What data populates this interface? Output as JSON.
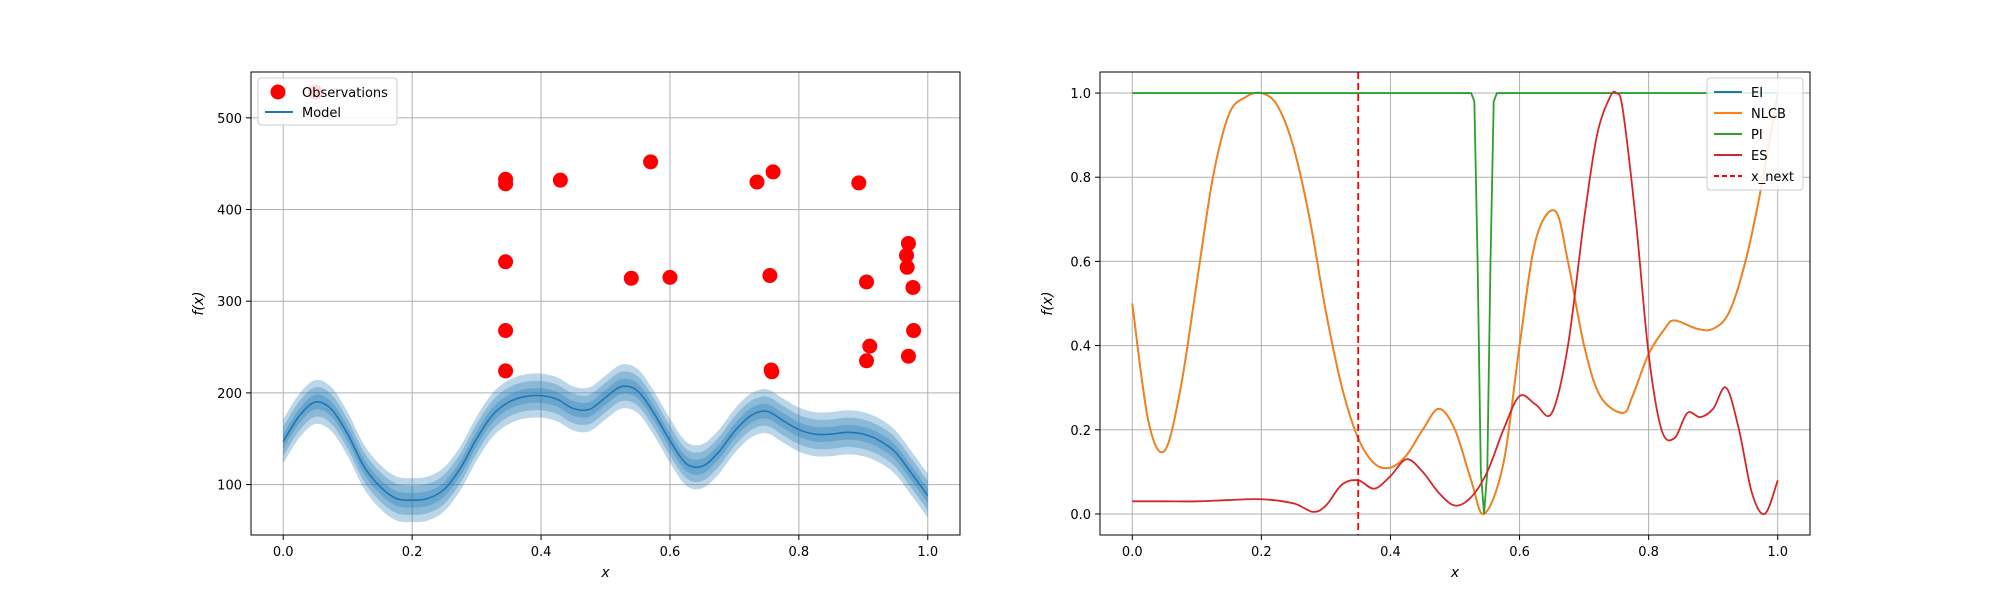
{
  "chart_data": [
    {
      "type": "scatter",
      "panel": "left",
      "xlabel": "x",
      "ylabel": "f(x)",
      "xlim": [
        -0.05,
        1.05
      ],
      "ylim": [
        45,
        550
      ],
      "xticks": [
        0.0,
        0.2,
        0.4,
        0.6,
        0.8,
        1.0
      ],
      "yticks": [
        100,
        200,
        300,
        400,
        500
      ],
      "xtick_labels": [
        "0.0",
        "0.2",
        "0.4",
        "0.6",
        "0.8",
        "1.0"
      ],
      "ytick_labels": [
        "100",
        "200",
        "300",
        "400",
        "500"
      ],
      "grid": true,
      "legend": {
        "placement": "top-left",
        "entries": [
          "Observations",
          "Model"
        ]
      },
      "colors": {
        "observations": "#ff0000",
        "model": "#1f77b4"
      },
      "series": [
        {
          "name": "Observations",
          "kind": "points",
          "points": [
            [
              0.05,
              528
            ],
            [
              0.345,
              433
            ],
            [
              0.345,
              428
            ],
            [
              0.345,
              343
            ],
            [
              0.345,
              268
            ],
            [
              0.345,
              224
            ],
            [
              0.43,
              432
            ],
            [
              0.54,
              325
            ],
            [
              0.57,
              452
            ],
            [
              0.6,
              326
            ],
            [
              0.735,
              430
            ],
            [
              0.755,
              328
            ],
            [
              0.76,
              441
            ],
            [
              0.757,
              225
            ],
            [
              0.758,
              223
            ],
            [
              0.893,
              429
            ],
            [
              0.905,
              321
            ],
            [
              0.905,
              235
            ],
            [
              0.91,
              251
            ],
            [
              0.97,
              363
            ],
            [
              0.967,
              350
            ],
            [
              0.968,
              337
            ],
            [
              0.977,
              315
            ],
            [
              0.978,
              268
            ],
            [
              0.97,
              240
            ]
          ]
        },
        {
          "name": "Model",
          "kind": "mean_with_bands",
          "x": [
            0.0,
            0.025,
            0.05,
            0.075,
            0.1,
            0.125,
            0.15,
            0.175,
            0.2,
            0.225,
            0.25,
            0.275,
            0.3,
            0.325,
            0.35,
            0.375,
            0.4,
            0.425,
            0.45,
            0.475,
            0.5,
            0.525,
            0.55,
            0.575,
            0.6,
            0.625,
            0.65,
            0.675,
            0.7,
            0.725,
            0.75,
            0.775,
            0.8,
            0.825,
            0.85,
            0.875,
            0.9,
            0.925,
            0.95,
            0.975,
            1.0
          ],
          "mean": [
            147,
            175,
            190,
            182,
            155,
            120,
            98,
            85,
            83,
            85,
            95,
            118,
            150,
            176,
            190,
            196,
            197,
            193,
            183,
            182,
            195,
            207,
            202,
            178,
            148,
            123,
            120,
            135,
            158,
            175,
            180,
            170,
            160,
            155,
            155,
            157,
            155,
            148,
            135,
            112,
            88
          ],
          "bands": [
            8,
            16,
            24
          ]
        }
      ]
    },
    {
      "type": "line",
      "panel": "right",
      "xlabel": "x",
      "ylabel": "f(x)",
      "xlim": [
        -0.05,
        1.05
      ],
      "ylim": [
        -0.05,
        1.05
      ],
      "xticks": [
        0.0,
        0.2,
        0.4,
        0.6,
        0.8,
        1.0
      ],
      "yticks": [
        0.0,
        0.2,
        0.4,
        0.6,
        0.8,
        1.0
      ],
      "xtick_labels": [
        "0.0",
        "0.2",
        "0.4",
        "0.6",
        "0.8",
        "1.0"
      ],
      "ytick_labels": [
        "0.0",
        "0.2",
        "0.4",
        "0.6",
        "0.8",
        "1.0"
      ],
      "grid": true,
      "legend": {
        "placement": "top-right",
        "entries": [
          "EI",
          "NLCB",
          "PI",
          "ES",
          "x_next"
        ]
      },
      "x_next": 0.35,
      "series": [
        {
          "name": "EI",
          "color": "#1f77b4",
          "x": [
            0.0,
            0.025,
            0.05,
            0.075,
            0.1,
            0.125,
            0.15,
            0.175,
            0.2,
            0.225,
            0.25,
            0.275,
            0.3,
            0.325,
            0.35,
            0.375,
            0.4,
            0.425,
            0.45,
            0.475,
            0.5,
            0.525,
            0.545,
            0.575,
            0.6,
            0.625,
            0.655,
            0.675,
            0.7,
            0.725,
            0.76,
            0.775,
            0.8,
            0.825,
            0.84,
            0.875,
            0.9,
            0.925,
            0.95,
            0.975,
            1.0
          ],
          "y": [
            0.5,
            0.22,
            0.15,
            0.3,
            0.55,
            0.8,
            0.95,
            0.99,
            1.0,
            0.97,
            0.87,
            0.7,
            0.48,
            0.3,
            0.18,
            0.12,
            0.11,
            0.14,
            0.2,
            0.25,
            0.2,
            0.08,
            0.0,
            0.12,
            0.4,
            0.65,
            0.72,
            0.6,
            0.4,
            0.28,
            0.24,
            0.28,
            0.38,
            0.44,
            0.46,
            0.44,
            0.44,
            0.48,
            0.6,
            0.78,
            1.0
          ]
        },
        {
          "name": "NLCB",
          "color": "#ff7f0e",
          "x": [
            0.0,
            0.025,
            0.05,
            0.075,
            0.1,
            0.125,
            0.15,
            0.175,
            0.2,
            0.225,
            0.25,
            0.275,
            0.3,
            0.325,
            0.35,
            0.375,
            0.4,
            0.425,
            0.45,
            0.475,
            0.5,
            0.525,
            0.545,
            0.575,
            0.6,
            0.625,
            0.655,
            0.675,
            0.7,
            0.725,
            0.76,
            0.775,
            0.8,
            0.825,
            0.84,
            0.875,
            0.9,
            0.925,
            0.95,
            0.975,
            1.0
          ],
          "y": [
            0.5,
            0.22,
            0.15,
            0.3,
            0.55,
            0.8,
            0.95,
            0.99,
            1.0,
            0.97,
            0.87,
            0.7,
            0.48,
            0.3,
            0.18,
            0.12,
            0.11,
            0.14,
            0.2,
            0.25,
            0.2,
            0.08,
            0.0,
            0.12,
            0.4,
            0.65,
            0.72,
            0.6,
            0.4,
            0.28,
            0.24,
            0.28,
            0.38,
            0.44,
            0.46,
            0.44,
            0.44,
            0.48,
            0.6,
            0.78,
            1.0
          ]
        },
        {
          "name": "PI",
          "color": "#2ca02c",
          "x": [
            0.0,
            0.525,
            0.53,
            0.535,
            0.54,
            0.545,
            0.55,
            0.555,
            0.56,
            0.565,
            1.0
          ],
          "y": [
            1.0,
            1.0,
            0.98,
            0.6,
            0.1,
            0.0,
            0.1,
            0.6,
            0.98,
            1.0,
            1.0
          ]
        },
        {
          "name": "ES",
          "color": "#d62728",
          "x": [
            0.0,
            0.05,
            0.1,
            0.15,
            0.2,
            0.25,
            0.28,
            0.3,
            0.325,
            0.35,
            0.375,
            0.4,
            0.425,
            0.45,
            0.475,
            0.5,
            0.525,
            0.55,
            0.575,
            0.6,
            0.625,
            0.65,
            0.675,
            0.7,
            0.72,
            0.74,
            0.75,
            0.76,
            0.78,
            0.8,
            0.82,
            0.84,
            0.86,
            0.88,
            0.9,
            0.92,
            0.94,
            0.96,
            0.98,
            1.0
          ],
          "y": [
            0.03,
            0.03,
            0.03,
            0.033,
            0.035,
            0.025,
            0.005,
            0.02,
            0.07,
            0.08,
            0.06,
            0.09,
            0.13,
            0.1,
            0.05,
            0.02,
            0.04,
            0.1,
            0.2,
            0.28,
            0.26,
            0.24,
            0.4,
            0.7,
            0.9,
            0.99,
            1.0,
            0.96,
            0.7,
            0.38,
            0.2,
            0.18,
            0.24,
            0.23,
            0.25,
            0.3,
            0.2,
            0.05,
            0.0,
            0.08
          ]
        },
        {
          "name": "x_next",
          "color": "#ff0000",
          "dashed": true,
          "vertical_at": 0.35
        }
      ]
    }
  ]
}
